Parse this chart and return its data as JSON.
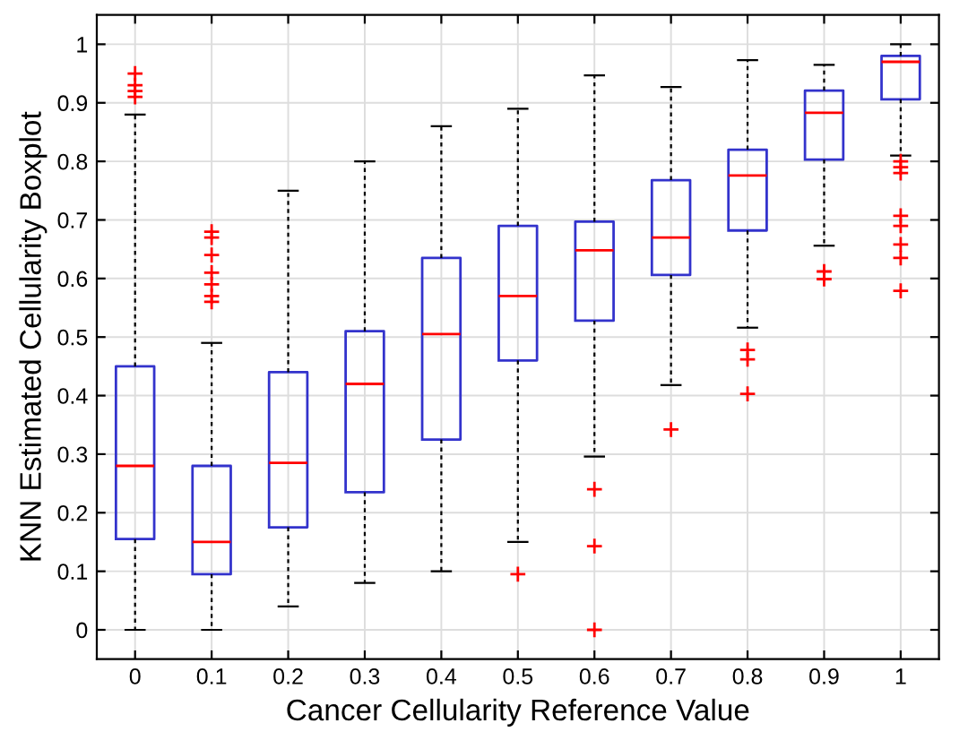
{
  "chart_data": {
    "type": "box",
    "xlabel": "Cancer Cellularity Reference Value",
    "ylabel": "KNN Estimated Cellularity Boxplot",
    "categories": [
      "0",
      "0.1",
      "0.2",
      "0.3",
      "0.4",
      "0.5",
      "0.6",
      "0.7",
      "0.8",
      "0.9",
      "1"
    ],
    "boxes": [
      {
        "low": 0,
        "q1": 0.155,
        "median": 0.28,
        "q3": 0.45,
        "high": 0.88,
        "outliers": [
          0.91,
          0.92,
          0.93,
          0.95
        ]
      },
      {
        "low": 0,
        "q1": 0.095,
        "median": 0.15,
        "q3": 0.28,
        "high": 0.49,
        "outliers": [
          0.56,
          0.57,
          0.59,
          0.61,
          0.64,
          0.67,
          0.68
        ]
      },
      {
        "low": 0.04,
        "q1": 0.175,
        "median": 0.285,
        "q3": 0.44,
        "high": 0.75
      },
      {
        "low": 0.08,
        "q1": 0.235,
        "median": 0.42,
        "q3": 0.51,
        "high": 0.8
      },
      {
        "low": 0.1,
        "q1": 0.325,
        "median": 0.505,
        "q3": 0.635,
        "high": 0.86
      },
      {
        "low": 0.15,
        "q1": 0.46,
        "median": 0.57,
        "q3": 0.69,
        "high": 0.89,
        "outliers": [
          0.095
        ]
      },
      {
        "low": 0.296,
        "q1": 0.528,
        "median": 0.648,
        "q3": 0.697,
        "high": 0.947,
        "outliers": [
          0.24,
          0.143,
          0
        ]
      },
      {
        "low": 0.418,
        "q1": 0.606,
        "median": 0.67,
        "q3": 0.768,
        "high": 0.927,
        "outliers": [
          0.342
        ]
      },
      {
        "low": 0.516,
        "q1": 0.682,
        "median": 0.776,
        "q3": 0.82,
        "high": 0.973,
        "outliers": [
          0.478,
          0.462,
          0.403
        ]
      },
      {
        "low": 0.656,
        "q1": 0.803,
        "median": 0.883,
        "q3": 0.921,
        "high": 0.965,
        "outliers": [
          0.612,
          0.599
        ]
      },
      {
        "low": 0.81,
        "q1": 0.906,
        "median": 0.97,
        "q3": 0.98,
        "high": 1.0,
        "outliers": [
          0.8,
          0.79,
          0.78,
          0.707,
          0.69,
          0.658,
          0.635,
          0.579
        ]
      }
    ],
    "color": "#3333cc",
    "ylim": [
      -0.05,
      1.05
    ],
    "yticks": [
      0,
      0.1,
      0.2,
      0.3,
      0.4,
      0.5,
      0.6,
      0.7,
      0.8,
      0.9,
      1
    ],
    "grid": true
  }
}
